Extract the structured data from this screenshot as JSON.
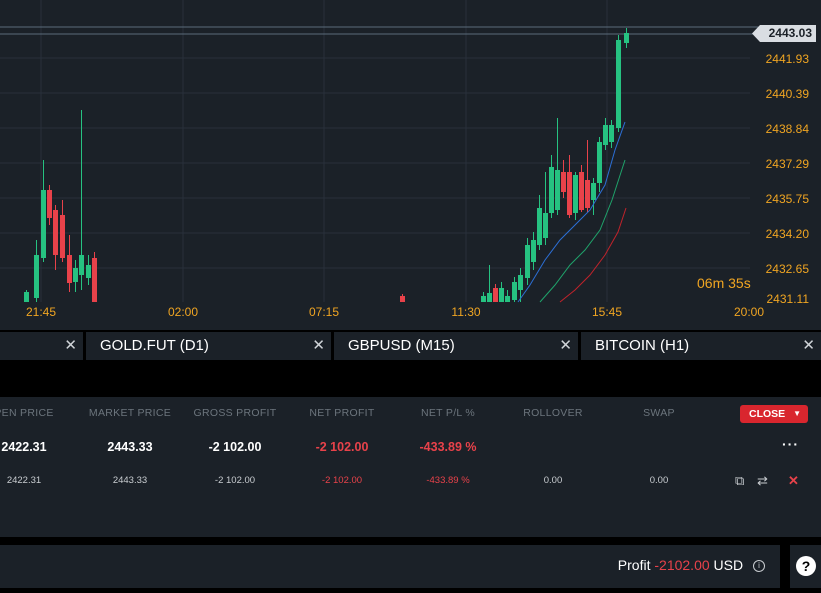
{
  "chart": {
    "price_labels": [
      "2441.93",
      "2440.39",
      "2438.84",
      "2437.29",
      "2435.75",
      "2434.20",
      "2432.65",
      "2431.11"
    ],
    "time_labels": [
      "21:45",
      "02:00",
      "07:15",
      "11:30",
      "15:45",
      "20:00"
    ],
    "current_price": "2443.03",
    "countdown": "06m 35s",
    "colors": {
      "up": "#26c281",
      "down": "#e8424a",
      "bg": "#1b2128",
      "axis": "#f0a522"
    }
  },
  "tabs": [
    {
      "label": ""
    },
    {
      "label": "GOLD.FUT (D1)"
    },
    {
      "label": "GBPUSD (M15)"
    },
    {
      "label": "BITCOIN (H1)"
    }
  ],
  "positions": {
    "headers": [
      "PEN PRICE",
      "MARKET PRICE",
      "GROSS PROFIT",
      "NET PROFIT",
      "NET P/L %",
      "ROLLOVER",
      "SWAP"
    ],
    "close_label": "CLOSE",
    "summary": {
      "open": "2422.31",
      "market": "2443.33",
      "gross": "-2 102.00",
      "net": "-2 102.00",
      "pl": "-433.89 %",
      "more": "···"
    },
    "detail": {
      "open": "2422.31",
      "market": "2443.33",
      "gross": "-2 102.00",
      "net": "-2 102.00",
      "pl": "-433.89 %",
      "rollover": "0.00",
      "swap": "0.00"
    }
  },
  "footer": {
    "profit_label": "Profit",
    "profit_value": "-2102.00",
    "currency": "USD",
    "help": "?"
  }
}
